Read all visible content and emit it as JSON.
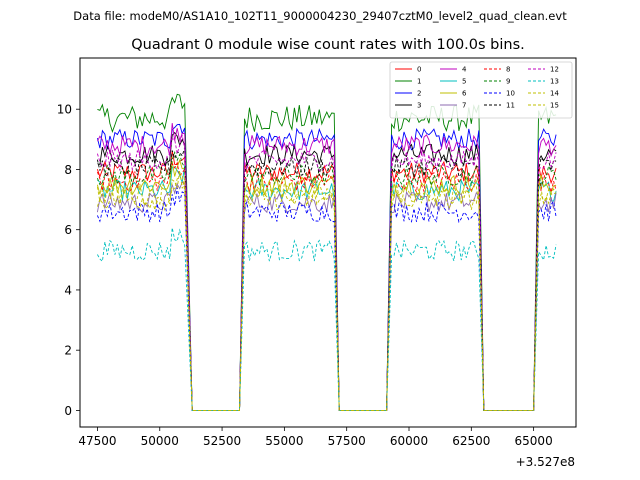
{
  "figure": {
    "suptitle": "Data file: modeM0/AS1A10_102T11_9000004230_29407cztM0_level2_quad_clean.evt"
  },
  "chart_data": {
    "type": "line",
    "title": "Quadrant 0 module wise count rates with 100.0s bins.",
    "xlabel": "",
    "ylabel": "",
    "x_offset_label": "+3.527e8",
    "x_offset": 352700000,
    "xlim": [
      46800,
      66700
    ],
    "ylim": [
      -0.55,
      11.7
    ],
    "x_ticks": [
      47500,
      50000,
      52500,
      55000,
      57500,
      60000,
      62500,
      65000
    ],
    "x_tick_labels": [
      "47500",
      "50000",
      "52500",
      "55000",
      "57500",
      "60000",
      "62500",
      "65000"
    ],
    "y_ticks": [
      0,
      2,
      4,
      6,
      8,
      10
    ],
    "y_tick_labels": [
      "0",
      "2",
      "4",
      "6",
      "8",
      "10"
    ],
    "legend_placement": "top-right",
    "bin_seconds": 100,
    "segments": [
      {
        "start": 47500,
        "end": 51000
      },
      {
        "start": 53400,
        "end": 57000
      },
      {
        "start": 59300,
        "end": 62800
      },
      {
        "start": 65200,
        "end": 65900
      }
    ],
    "gaps": [
      {
        "rise_start": 51000,
        "fall_end": 51300,
        "zero_end": 53200,
        "rise_end": 53400
      },
      {
        "rise_start": 57000,
        "fall_end": 57200,
        "zero_end": 59100,
        "rise_end": 59300
      },
      {
        "rise_start": 62800,
        "fall_end": 63000,
        "zero_end": 65000,
        "rise_end": 65200
      }
    ],
    "series": [
      {
        "name": "0",
        "color": "#ff0000",
        "dashed": false,
        "mean": 7.9
      },
      {
        "name": "1",
        "color": "#008000",
        "dashed": false,
        "mean": 9.7
      },
      {
        "name": "2",
        "color": "#0000ff",
        "dashed": false,
        "mean": 9.0
      },
      {
        "name": "3",
        "color": "#000000",
        "dashed": false,
        "mean": 8.5
      },
      {
        "name": "4",
        "color": "#bf00bf",
        "dashed": false,
        "mean": 8.8
      },
      {
        "name": "5",
        "color": "#00bfbf",
        "dashed": false,
        "mean": 7.3
      },
      {
        "name": "6",
        "color": "#bfbf00",
        "dashed": false,
        "mean": 7.5
      },
      {
        "name": "7",
        "color": "#8c6bb1",
        "dashed": false,
        "mean": 6.9
      },
      {
        "name": "8",
        "color": "#ff0000",
        "dashed": true,
        "mean": 7.6
      },
      {
        "name": "9",
        "color": "#008000",
        "dashed": true,
        "mean": 7.8
      },
      {
        "name": "10",
        "color": "#0000ff",
        "dashed": true,
        "mean": 6.6
      },
      {
        "name": "11",
        "color": "#000000",
        "dashed": true,
        "mean": 8.1
      },
      {
        "name": "12",
        "color": "#bf00bf",
        "dashed": true,
        "mean": 8.3
      },
      {
        "name": "13",
        "color": "#00bfbf",
        "dashed": true,
        "mean": 5.3
      },
      {
        "name": "14",
        "color": "#bfbf00",
        "dashed": true,
        "mean": 7.2
      },
      {
        "name": "15",
        "color": "#bfbf00",
        "dashed": true,
        "mean": 7.0
      }
    ]
  }
}
